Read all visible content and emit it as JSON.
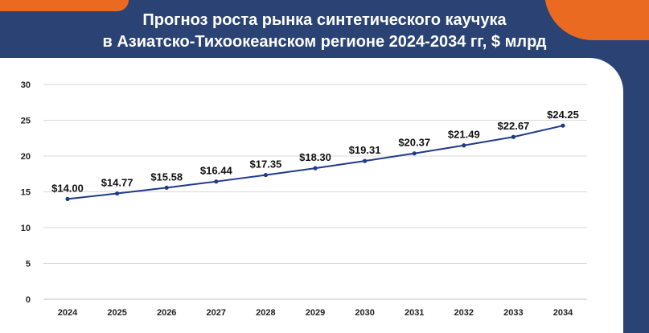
{
  "title": {
    "line1": "Прогноз роста рынка синтетического каучука",
    "line2": "в Азиатско-Тихоокеанском регионе 2024-2034 гг, $ млрд"
  },
  "colors": {
    "background": "#2a4374",
    "accent": "#ea6a22",
    "line": "#1f3a8a",
    "grid": "#d9d9d9"
  },
  "chart_data": {
    "type": "line",
    "x": [
      "2024",
      "2025",
      "2026",
      "2027",
      "2028",
      "2029",
      "2030",
      "2031",
      "2032",
      "2033",
      "2034"
    ],
    "series": [
      {
        "values": [
          14.0,
          14.77,
          15.58,
          16.44,
          17.35,
          18.3,
          19.31,
          20.37,
          21.49,
          22.67,
          24.25
        ],
        "labels": [
          "$14.00",
          "$14.77",
          "$15.58",
          "$16.44",
          "$17.35",
          "$18.30",
          "$19.31",
          "$20.37",
          "$21.49",
          "$22.67",
          "$24.25"
        ]
      }
    ],
    "yticks": [
      "0",
      "5",
      "10",
      "15",
      "20",
      "25",
      "30"
    ],
    "ylim": [
      0,
      30
    ],
    "grid": true,
    "legend": "none"
  }
}
